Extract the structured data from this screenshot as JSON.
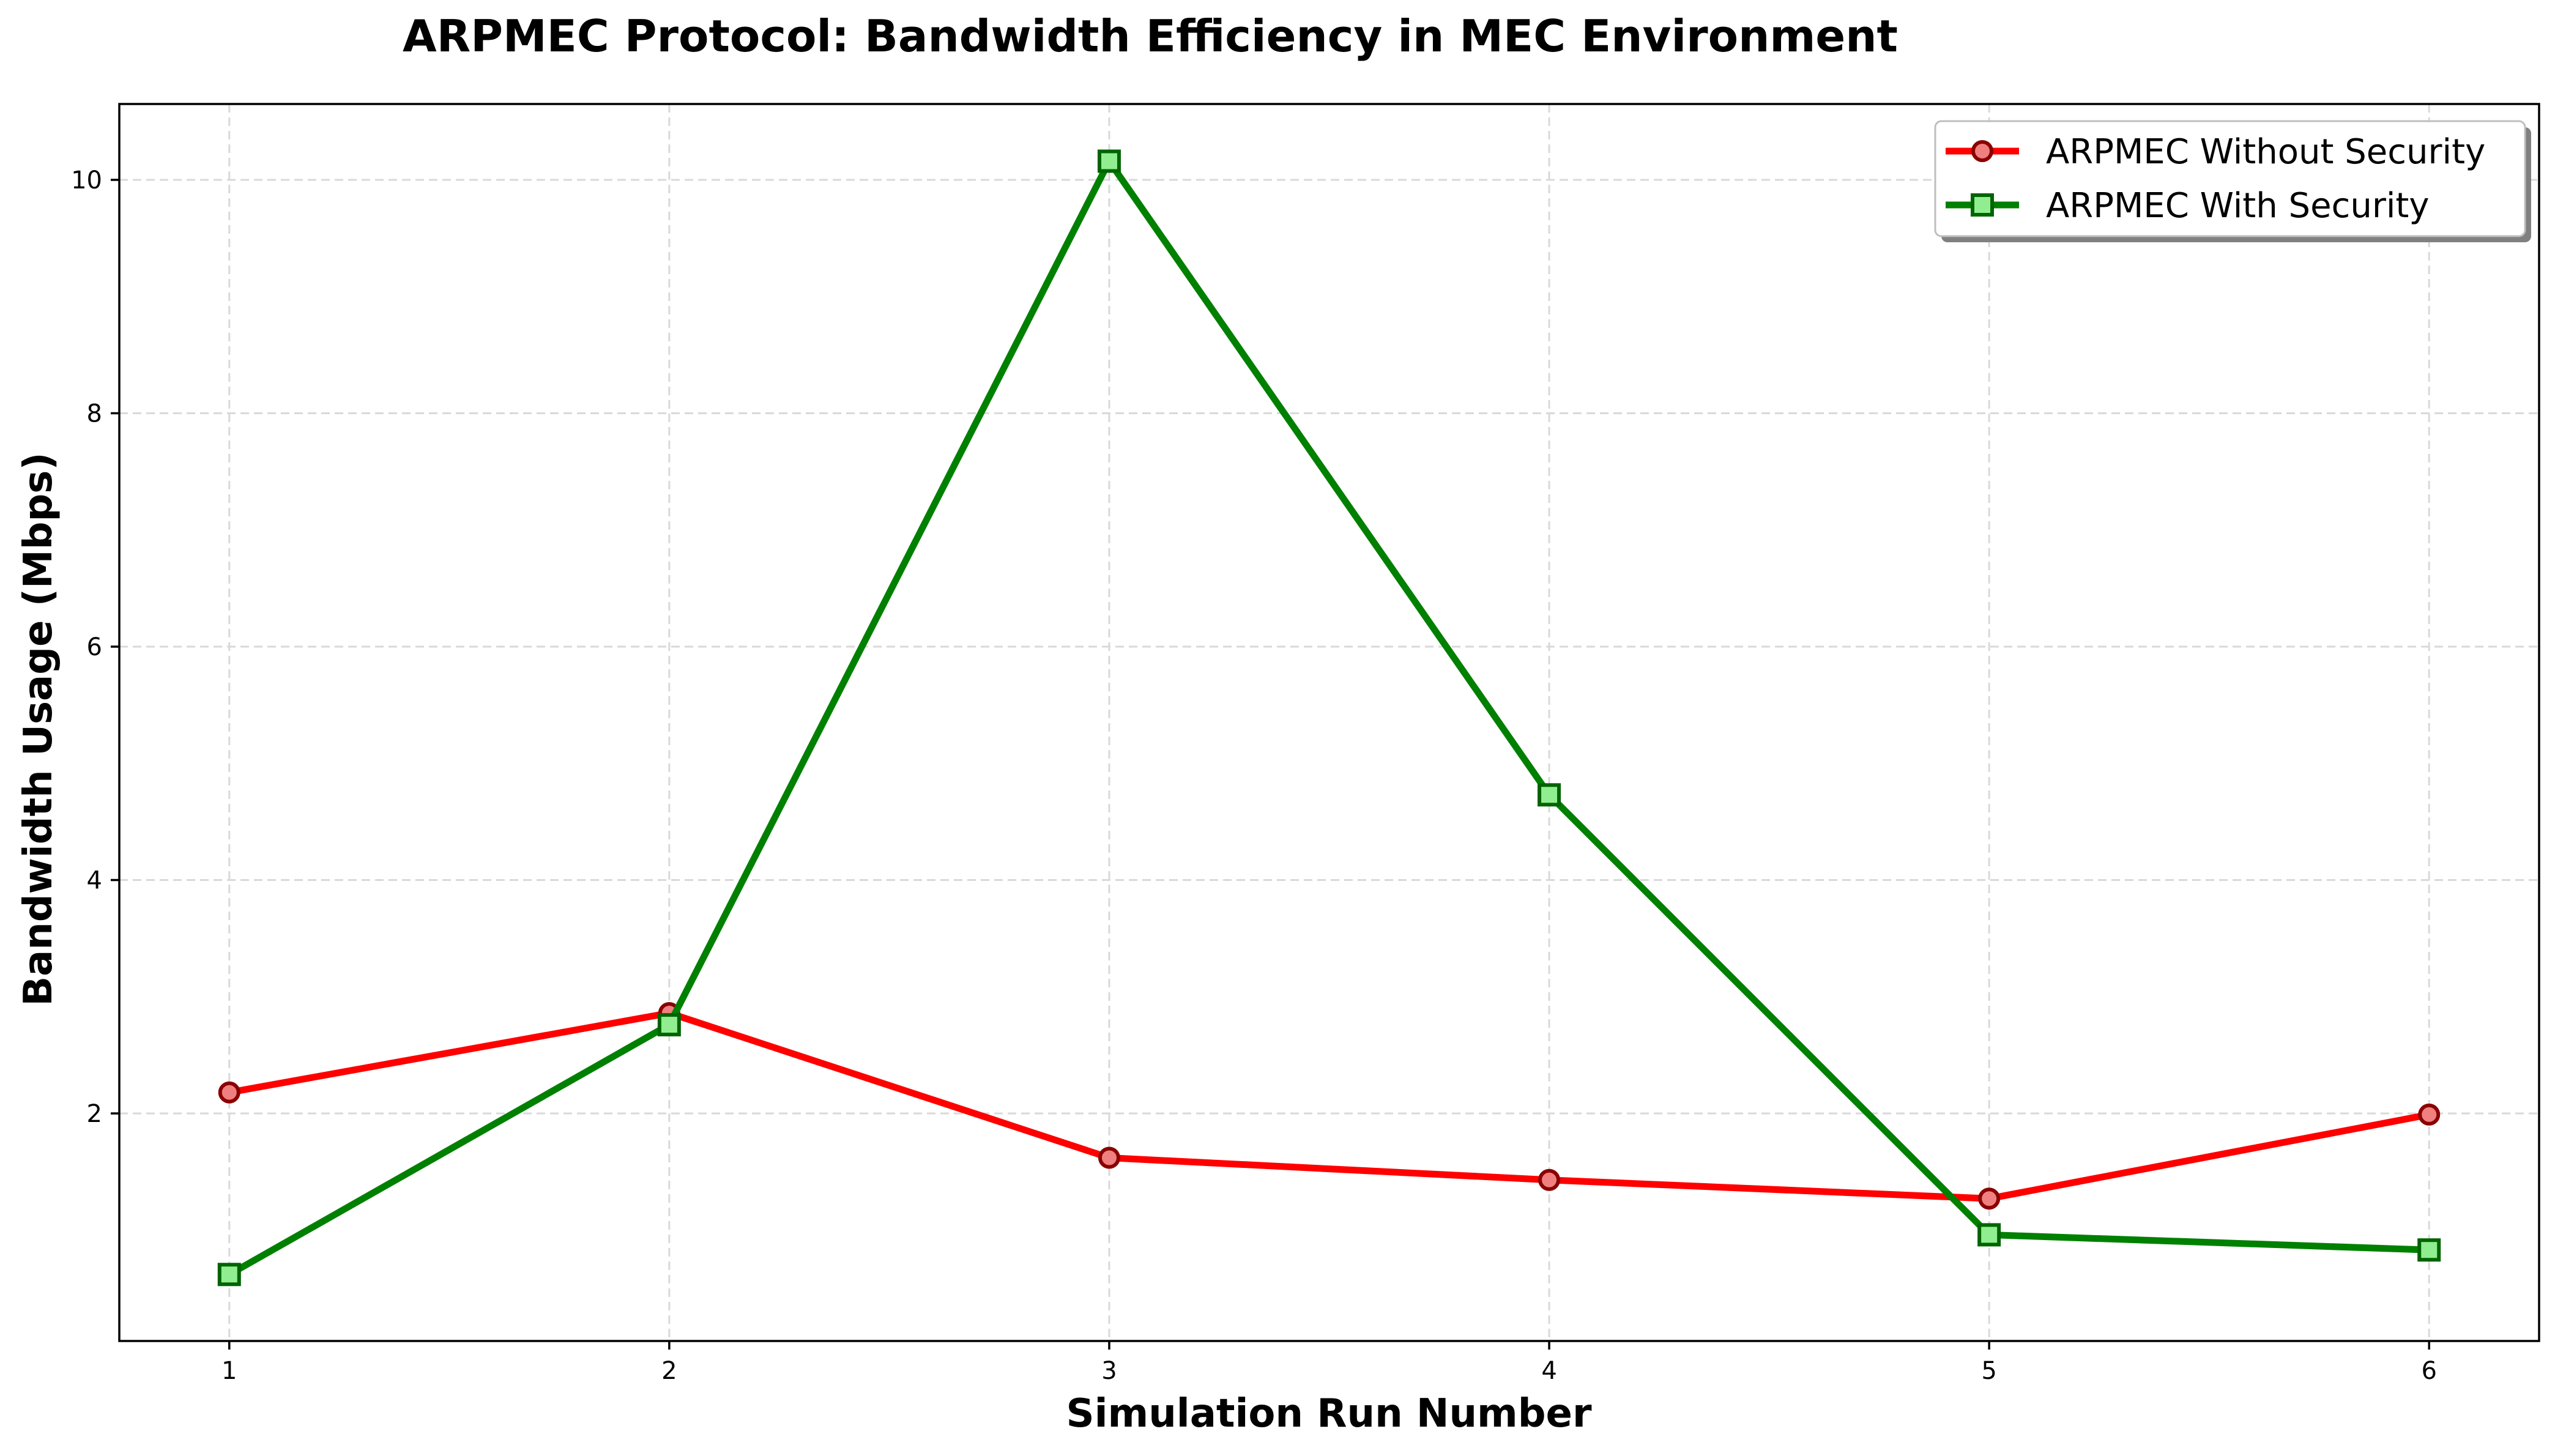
{
  "chart_data": {
    "type": "line",
    "title": "ARPMEC Protocol: Bandwidth Efficiency in MEC Environment",
    "xlabel": "Simulation Run Number",
    "ylabel": "Bandwidth Usage (Mbps)",
    "x": [
      1,
      2,
      3,
      4,
      5,
      6
    ],
    "x_ticks": [
      "1",
      "2",
      "3",
      "4",
      "5",
      "6"
    ],
    "y_ticks": [
      "2",
      "4",
      "6",
      "8",
      "10"
    ],
    "xlim": [
      0.75,
      6.25
    ],
    "ylim": [
      0.05,
      10.65
    ],
    "grid": true,
    "legend_position": "top-right",
    "series": [
      {
        "name": "ARPMEC Without Security",
        "color": "#ff0000",
        "marker": "circle",
        "marker_fill": "#f08080",
        "marker_edge": "#8b0000",
        "values": [
          2.18,
          2.86,
          1.62,
          1.43,
          1.27,
          1.99
        ]
      },
      {
        "name": "ARPMEC With Security",
        "color": "#008000",
        "marker": "square",
        "marker_fill": "#90ee90",
        "marker_edge": "#006400",
        "values": [
          0.62,
          2.76,
          10.16,
          4.73,
          0.96,
          0.83
        ]
      }
    ]
  }
}
